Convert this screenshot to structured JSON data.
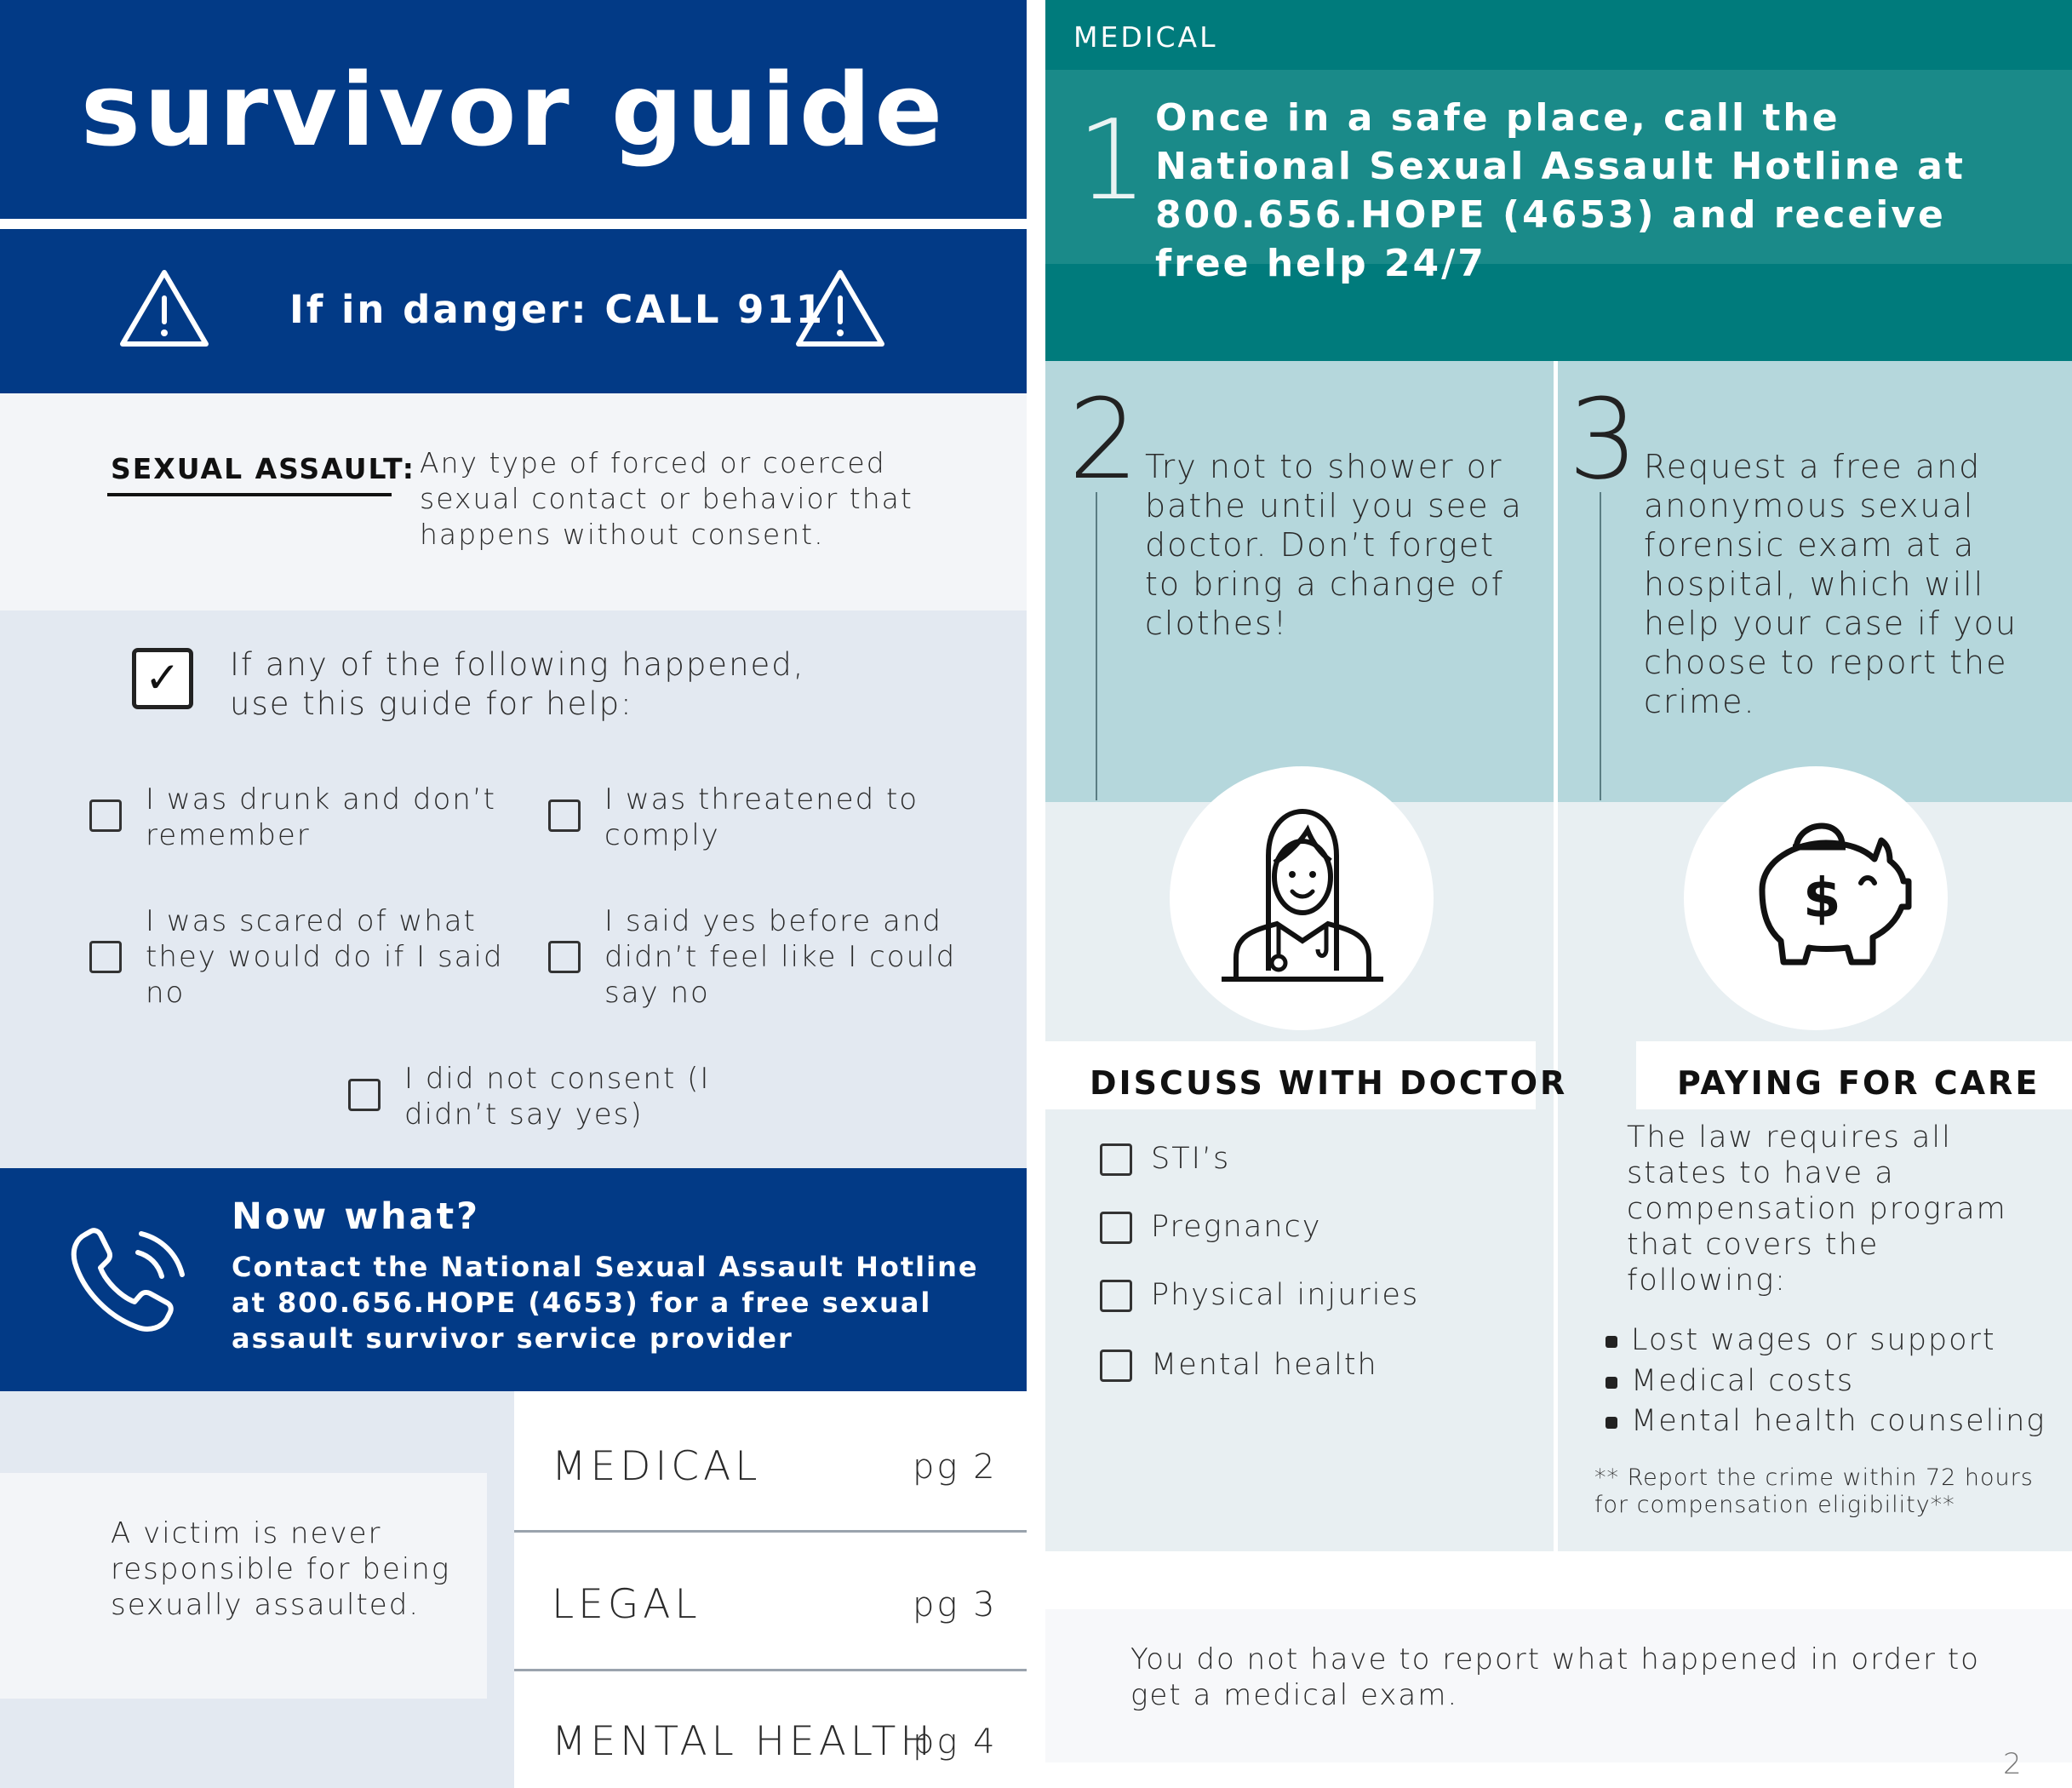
{
  "left": {
    "title": "survivor guide",
    "danger": "If in danger: CALL 911",
    "definition": {
      "term": "SEXUAL ASSAULT:",
      "text": "Any type of forced or coerced sexual contact or behavior that happens without consent."
    },
    "checklist": {
      "intro": "If any of the following happened, use this guide for help:",
      "items": [
        "I was drunk and don’t remember",
        "I was threatened to comply",
        "I was scared of what they would do if I said no",
        "I said yes before and didn’t feel like I could say no",
        "I did not consent (I didn’t say yes)"
      ]
    },
    "now_what": {
      "title": "Now what?",
      "text": "Contact the National Sexual Assault Hotline at 800.656.HOPE (4653) for a free sexual assault survivor service provider"
    },
    "victim_note": "A victim is never responsible for being sexually assaulted.",
    "toc": [
      {
        "label": "MEDICAL",
        "page": "pg 2"
      },
      {
        "label": "LEGAL",
        "page": "pg 3"
      },
      {
        "label": "MENTAL HEALTH",
        "page": "pg 4"
      }
    ]
  },
  "right": {
    "section": "MEDICAL",
    "steps": [
      {
        "number": "1",
        "text": "Once in a safe place, call the National Sexual Assault Hotline at 800.656.HOPE (4653) and receive free help 24/7"
      },
      {
        "number": "2",
        "text": "Try not to shower or bathe until you see a doctor. Don’t forget to bring a change of clothes!"
      },
      {
        "number": "3",
        "text": "Request a free and anonymous sexual forensic exam at a hospital, which will help your case if you choose to report the crime."
      }
    ],
    "doctor": {
      "title": "DISCUSS WITH DOCTOR",
      "items": [
        "STI’s",
        "Pregnancy",
        "Physical injuries",
        "Mental health"
      ]
    },
    "paying": {
      "title": "PAYING FOR CARE",
      "intro": "The law requires all states to have a compensation program that covers the following:",
      "items": [
        "Lost wages or support",
        "Medical costs",
        "Mental health counseling"
      ],
      "note": "** Report the crime within 72 hours for compensation eligibility**"
    },
    "footer": "You do not have to report what happened in order to get a medical exam.",
    "page_number": "2"
  }
}
